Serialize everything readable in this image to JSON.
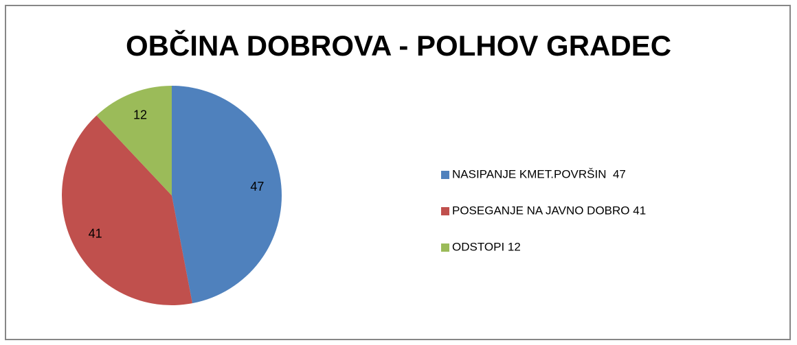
{
  "chart_data": {
    "type": "pie",
    "title": "OBČINA DOBROVA - POLHOV GRADEC",
    "categories": [
      "NASIPANJE KMET.POVRŠIN  47",
      "POSEGANJE NA JAVNO DOBRO 41",
      "ODSTOPI 12"
    ],
    "values": [
      47,
      41,
      12
    ],
    "colors": [
      "#4f81bd",
      "#c0504d",
      "#9bbb59"
    ],
    "legend": "right"
  }
}
